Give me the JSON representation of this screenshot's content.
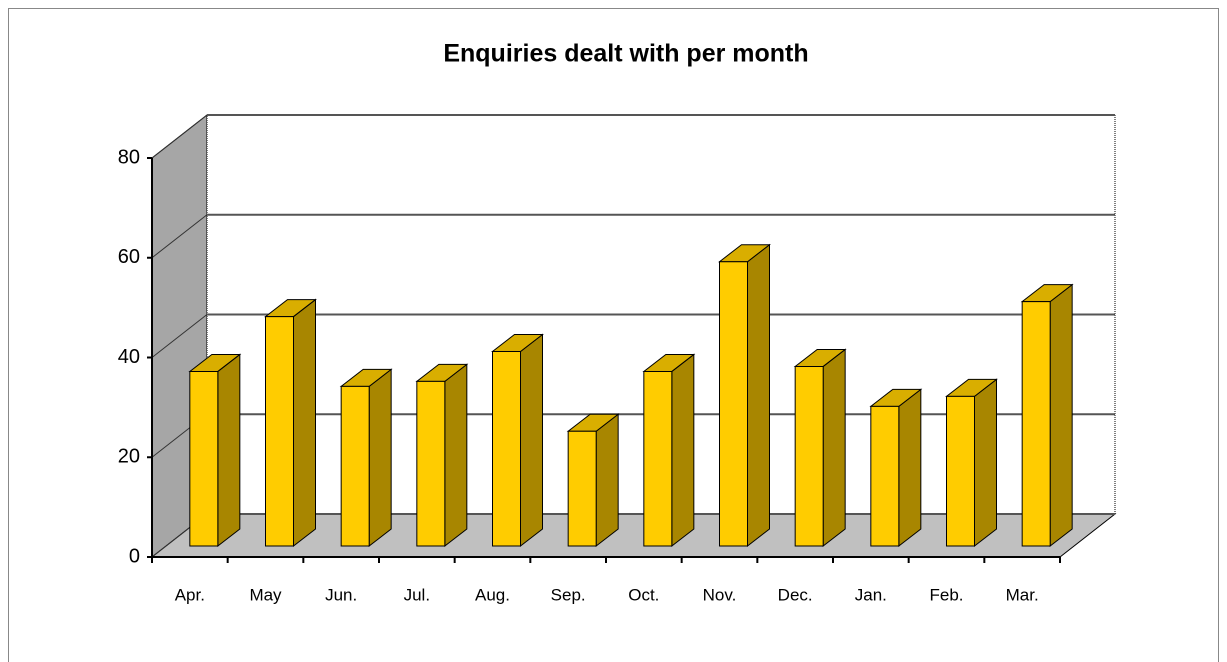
{
  "chart_data": {
    "type": "bar3d",
    "title": "Enquiries dealt with per month",
    "categories": [
      "Apr.",
      "May",
      "Jun.",
      "Jul.",
      "Aug.",
      "Sep.",
      "Oct.",
      "Nov.",
      "Dec.",
      "Jan.",
      "Feb.",
      "Mar."
    ],
    "values": [
      35,
      46,
      32,
      33,
      39,
      23,
      35,
      57,
      36,
      28,
      30,
      49
    ],
    "color": "#ffcc00",
    "ylim": [
      0,
      80
    ],
    "yticks": [
      0,
      20,
      40,
      60,
      80
    ],
    "grid": true
  }
}
